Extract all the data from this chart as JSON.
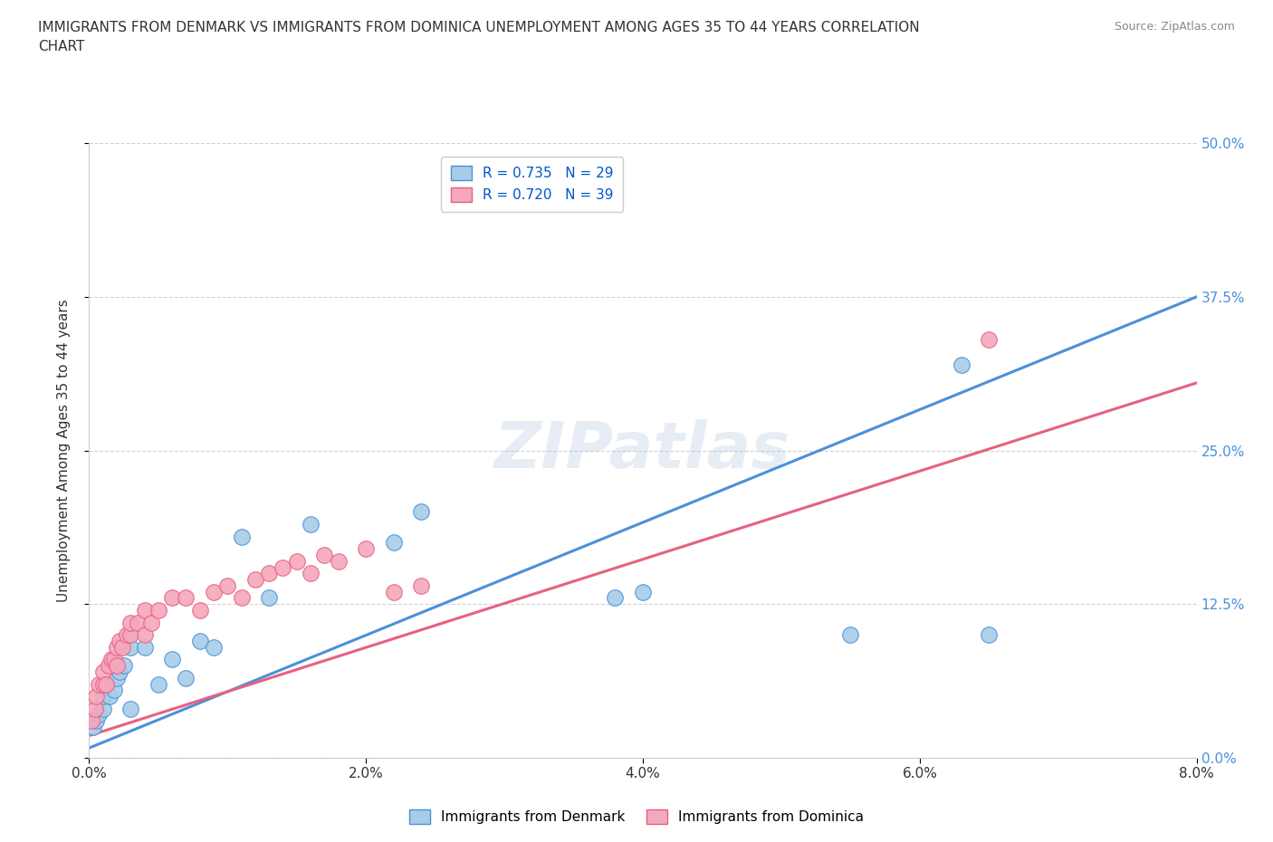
{
  "title": "IMMIGRANTS FROM DENMARK VS IMMIGRANTS FROM DOMINICA UNEMPLOYMENT AMONG AGES 35 TO 44 YEARS CORRELATION\nCHART",
  "source": "Source: ZipAtlas.com",
  "xlabel_ticks": [
    "0.0%",
    "2.0%",
    "4.0%",
    "6.0%",
    "8.0%"
  ],
  "xlabel_vals": [
    0.0,
    0.02,
    0.04,
    0.06,
    0.08
  ],
  "ylabel_ticks": [
    "0.0%",
    "12.5%",
    "25.0%",
    "37.5%",
    "50.0%"
  ],
  "ylabel_vals": [
    0.0,
    0.125,
    0.25,
    0.375,
    0.5
  ],
  "xlim": [
    0.0,
    0.08
  ],
  "ylim": [
    0.0,
    0.5
  ],
  "denmark_color": "#a8cce8",
  "dominica_color": "#f4a8bc",
  "denmark_line_color": "#4a90d9",
  "dominica_line_color": "#e86080",
  "denmark_R": 0.735,
  "denmark_N": 29,
  "dominica_R": 0.72,
  "dominica_N": 39,
  "denmark_line_x0": 0.0,
  "denmark_line_y0": 0.008,
  "denmark_line_x1": 0.08,
  "denmark_line_y1": 0.375,
  "dominica_line_x0": 0.0,
  "dominica_line_y0": 0.018,
  "dominica_line_x1": 0.08,
  "dominica_line_y1": 0.305,
  "denmark_x": [
    0.0003,
    0.0005,
    0.0007,
    0.001,
    0.001,
    0.0013,
    0.0015,
    0.0018,
    0.002,
    0.0022,
    0.0025,
    0.003,
    0.003,
    0.004,
    0.005,
    0.006,
    0.007,
    0.008,
    0.009,
    0.011,
    0.013,
    0.016,
    0.022,
    0.024,
    0.038,
    0.04,
    0.055,
    0.063,
    0.065
  ],
  "denmark_y": [
    0.025,
    0.03,
    0.035,
    0.04,
    0.05,
    0.06,
    0.05,
    0.055,
    0.065,
    0.07,
    0.075,
    0.04,
    0.09,
    0.09,
    0.06,
    0.08,
    0.065,
    0.095,
    0.09,
    0.18,
    0.13,
    0.19,
    0.175,
    0.2,
    0.13,
    0.135,
    0.1,
    0.32,
    0.1
  ],
  "dominica_x": [
    0.0002,
    0.0004,
    0.0005,
    0.0007,
    0.001,
    0.001,
    0.0012,
    0.0014,
    0.0016,
    0.0018,
    0.002,
    0.002,
    0.0022,
    0.0024,
    0.0027,
    0.003,
    0.003,
    0.0035,
    0.004,
    0.004,
    0.0045,
    0.005,
    0.006,
    0.007,
    0.008,
    0.009,
    0.01,
    0.011,
    0.012,
    0.013,
    0.014,
    0.015,
    0.016,
    0.017,
    0.018,
    0.02,
    0.022,
    0.024,
    0.065
  ],
  "dominica_y": [
    0.03,
    0.04,
    0.05,
    0.06,
    0.06,
    0.07,
    0.06,
    0.075,
    0.08,
    0.08,
    0.075,
    0.09,
    0.095,
    0.09,
    0.1,
    0.1,
    0.11,
    0.11,
    0.1,
    0.12,
    0.11,
    0.12,
    0.13,
    0.13,
    0.12,
    0.135,
    0.14,
    0.13,
    0.145,
    0.15,
    0.155,
    0.16,
    0.15,
    0.165,
    0.16,
    0.17,
    0.135,
    0.14,
    0.34
  ],
  "background_color": "#ffffff",
  "grid_color": "#d0d0d0",
  "ylabel": "Unemployment Among Ages 35 to 44 years",
  "watermark": "ZIPatlas"
}
